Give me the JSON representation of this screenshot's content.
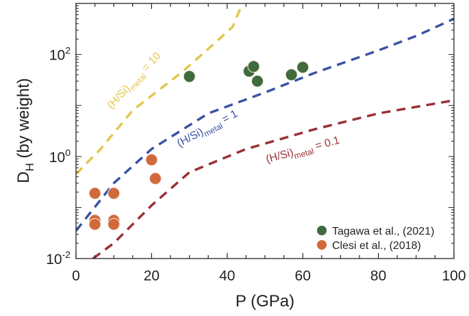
{
  "chart_data": {
    "type": "scatter",
    "xlabel": "P (GPa)",
    "ylabel": {
      "main": "D",
      "sub": "H",
      "rest": " (by weight)"
    },
    "xlim": [
      0,
      100
    ],
    "ylim": [
      0.01,
      1000
    ],
    "yscale": "log",
    "grid": false,
    "x_ticks": [
      0,
      20,
      40,
      60,
      80,
      100
    ],
    "x_tick_labels": [
      "0",
      "20",
      "40",
      "60",
      "80",
      "100"
    ],
    "y_ticks": [
      0.01,
      1,
      100
    ],
    "y_tick_labels": [
      {
        "base": "10",
        "exp": "-2"
      },
      {
        "base": "10",
        "exp": "0"
      },
      {
        "base": "10",
        "exp": "2"
      }
    ],
    "legend_position": "bottom-right",
    "series": [
      {
        "name": "Tagawa et al., (2021)",
        "color": "#3f6b3d",
        "points": [
          [
            30,
            37
          ],
          [
            45.8,
            47
          ],
          [
            47,
            58
          ],
          [
            48,
            30
          ],
          [
            57,
            40
          ],
          [
            60,
            56
          ]
        ]
      },
      {
        "name": "Clesi et al., (2018)",
        "color": "#d06a3c",
        "points": [
          [
            5,
            0.19
          ],
          [
            5,
            0.056
          ],
          [
            5,
            0.047
          ],
          [
            10,
            0.19
          ],
          [
            10,
            0.056
          ],
          [
            10,
            0.047
          ],
          [
            20,
            0.86
          ],
          [
            21,
            0.37
          ]
        ]
      }
    ],
    "curves": [
      {
        "label": {
          "pre": "(H/Si)",
          "sub": "metal",
          "post": " = 10"
        },
        "color": "#e3c74c",
        "style": "dashed",
        "points": [
          [
            0,
            0.45
          ],
          [
            6.5,
            1.4
          ],
          [
            15,
            8
          ],
          [
            28,
            45
          ],
          [
            36,
            150
          ],
          [
            41.5,
            350
          ],
          [
            44,
            1000
          ]
        ]
      },
      {
        "label": {
          "pre": "(H/Si)",
          "sub": "metal",
          "post": " = 1"
        },
        "color": "#3a52a3",
        "style": "dashed",
        "points": [
          [
            0,
            0.035
          ],
          [
            10,
            0.3
          ],
          [
            20,
            1.4
          ],
          [
            35,
            7
          ],
          [
            50,
            18
          ],
          [
            63,
            43
          ],
          [
            80,
            120
          ],
          [
            90,
            230
          ],
          [
            100,
            500
          ]
        ]
      },
      {
        "label": {
          "pre": "(H/Si)",
          "sub": "metal",
          "post": " = 0.1"
        },
        "color": "#9a3035",
        "style": "dashed",
        "points": [
          [
            4.5,
            0.01
          ],
          [
            10,
            0.02
          ],
          [
            20,
            0.11
          ],
          [
            30,
            0.49
          ],
          [
            45,
            1.4
          ],
          [
            63,
            3.4
          ],
          [
            80,
            7
          ],
          [
            100,
            12.6
          ]
        ]
      }
    ]
  }
}
